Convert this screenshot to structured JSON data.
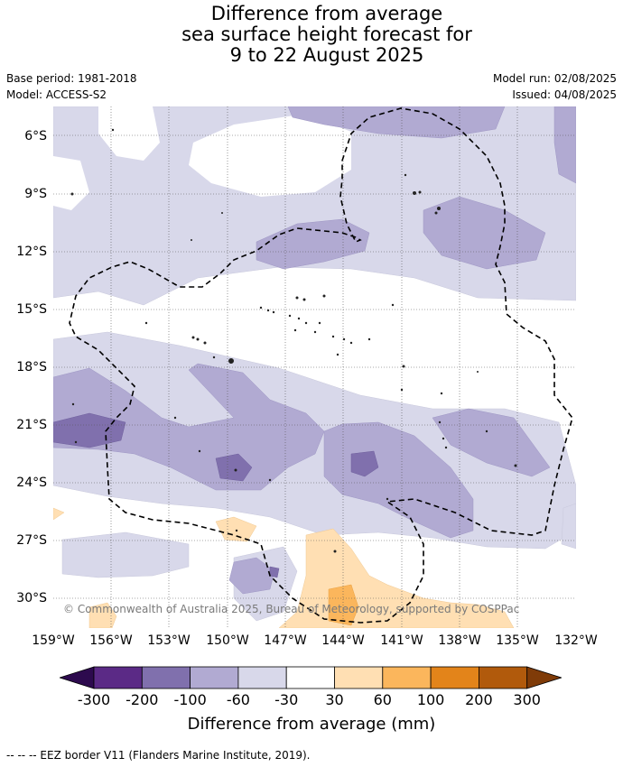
{
  "title_lines": [
    "Difference from average",
    "sea surface height forecast for",
    "9 to 22 August 2025"
  ],
  "meta_left": [
    "Base period: 1981-2018",
    "Model: ACCESS-S2"
  ],
  "meta_right": [
    "Model run: 02/08/2025",
    "Issued: 04/08/2025"
  ],
  "map": {
    "lat_range": [
      -31.5,
      -4.5
    ],
    "lon_range": [
      -159,
      -132
    ],
    "lat_ticks": [
      "6°S",
      "9°S",
      "12°S",
      "15°S",
      "18°S",
      "21°S",
      "24°S",
      "27°S",
      "30°S"
    ],
    "lon_ticks": [
      "159°W",
      "156°W",
      "153°W",
      "150°W",
      "147°W",
      "144°W",
      "141°W",
      "138°W",
      "135°W",
      "132°W"
    ],
    "grid": "dotted",
    "copyright": "© Commonwealth of Australia 2025, Bureau of Meteorology, supported by COSPPac"
  },
  "colorbar": {
    "tick_labels": [
      "-300",
      "-200",
      "-100",
      "-60",
      "-30",
      "30",
      "60",
      "100",
      "200",
      "300"
    ],
    "colors": [
      "#2d0a4e",
      "#5b2a86",
      "#8070ad",
      "#b1aad2",
      "#d8d8ea",
      "#ffffff",
      "#ffdfb3",
      "#fbb65c",
      "#e3841a",
      "#b15a0c",
      "#7f3b08"
    ],
    "label": "Difference from average (mm)"
  },
  "footnote": "--  --  -- EEZ border V11 (Flanders Marine Institute, 2019)."
}
